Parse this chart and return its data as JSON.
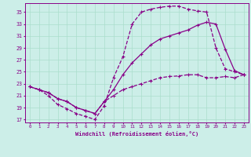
{
  "xlabel": "Windchill (Refroidissement éolien,°C)",
  "bg_color": "#cceee8",
  "line_color": "#880088",
  "grid_color": "#aaddcc",
  "x_ticks": [
    0,
    1,
    2,
    3,
    4,
    5,
    6,
    7,
    8,
    9,
    10,
    11,
    12,
    13,
    14,
    15,
    16,
    17,
    18,
    19,
    20,
    21,
    22,
    23
  ],
  "y_ticks": [
    17,
    19,
    21,
    23,
    25,
    27,
    29,
    31,
    33,
    35
  ],
  "xlim": [
    -0.5,
    23.5
  ],
  "ylim": [
    16.5,
    36.5
  ],
  "line1_x": [
    0,
    1,
    2,
    3,
    4,
    5,
    6,
    7,
    8,
    9,
    10,
    11,
    12,
    13,
    14,
    15,
    16,
    17,
    18,
    19,
    20,
    21,
    22,
    23
  ],
  "line1_y": [
    22.5,
    22.0,
    21.0,
    19.5,
    18.8,
    18.0,
    17.5,
    17.0,
    19.3,
    24.0,
    27.5,
    33.0,
    35.0,
    35.5,
    35.8,
    36.0,
    36.0,
    35.5,
    35.2,
    35.0,
    29.0,
    25.5,
    25.0,
    24.5
  ],
  "line2_x": [
    0,
    1,
    2,
    3,
    4,
    5,
    6,
    7,
    8,
    9,
    10,
    11,
    12,
    13,
    14,
    15,
    16,
    17,
    18,
    19,
    20,
    21,
    22,
    23
  ],
  "line2_y": [
    22.5,
    22.0,
    21.5,
    20.5,
    20.0,
    19.0,
    18.5,
    18.0,
    20.0,
    22.0,
    24.5,
    26.5,
    28.0,
    29.5,
    30.5,
    31.0,
    31.5,
    32.0,
    32.8,
    33.3,
    33.0,
    28.8,
    25.2,
    24.5
  ],
  "line3_x": [
    0,
    1,
    2,
    3,
    4,
    5,
    6,
    7,
    8,
    9,
    10,
    11,
    12,
    13,
    14,
    15,
    16,
    17,
    18,
    19,
    20,
    21,
    22,
    23
  ],
  "line3_y": [
    22.5,
    22.0,
    21.5,
    20.5,
    20.0,
    19.0,
    18.5,
    18.0,
    20.0,
    21.0,
    22.0,
    22.5,
    23.0,
    23.5,
    24.0,
    24.2,
    24.3,
    24.5,
    24.5,
    24.0,
    24.0,
    24.2,
    24.0,
    24.5
  ]
}
